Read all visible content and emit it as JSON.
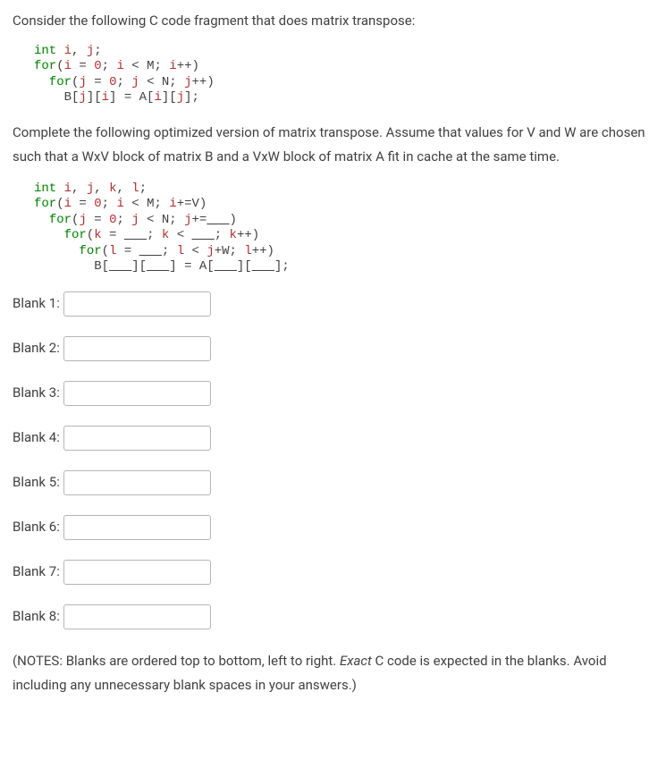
{
  "intro": "Consider the following C code fragment that does matrix transpose:",
  "code1_html": "<span class='kw'>int</span> <span class='var'>i</span>, <span class='var'>j</span>;\n<span class='kw'>for</span>(<span class='var'>i</span> = <span class='num'>0</span>; <span class='var'>i</span> &lt; M; <span class='var'>i</span>++)\n  <span class='kw'>for</span>(<span class='var'>j</span> = <span class='num'>0</span>; <span class='var'>j</span> &lt; N; <span class='var'>j</span>++)\n    B[<span class='var'>j</span>][<span class='var'>i</span>] = A[<span class='var'>i</span>][<span class='var'>j</span>];",
  "completion": "Complete the following optimized version of matrix transpose.  Assume that values for V and W are chosen such that a WxV block of matrix B and a VxW block of matrix A fit in cache at the same time.",
  "code2_html": "<span class='kw'>int</span> <span class='var'>i</span>, <span class='var'>j</span>, <span class='var'>k</span>, <span class='var'>l</span>;\n<span class='kw'>for</span>(<span class='var'>i</span> = <span class='num'>0</span>; <span class='var'>i</span> &lt; M; <span class='var'>i</span>+=V)\n  <span class='kw'>for</span>(<span class='var'>j</span> = <span class='num'>0</span>; <span class='var'>j</span> &lt; N; <span class='var'>j</span>+=<span class='u'>   </span>)\n    <span class='kw'>for</span>(<span class='var'>k</span> = <span class='u'>   </span>; <span class='var'>k</span> &lt; <span class='u'>   </span>; <span class='var'>k</span>++)\n      <span class='kw'>for</span>(<span class='var'>l</span> = <span class='u'>   </span>; <span class='var'>l</span> &lt; <span class='var'>j</span>+W; <span class='var'>l</span>++)\n        B[<span class='u'>   </span>][<span class='u'>   </span>] = A[<span class='u'>   </span>][<span class='u'>   </span>];",
  "blanks": [
    {
      "label": "Blank 1:",
      "value": ""
    },
    {
      "label": "Blank 2:",
      "value": ""
    },
    {
      "label": "Blank 3:",
      "value": ""
    },
    {
      "label": "Blank 4:",
      "value": ""
    },
    {
      "label": "Blank 5:",
      "value": ""
    },
    {
      "label": "Blank 6:",
      "value": ""
    },
    {
      "label": "Blank 7:",
      "value": ""
    },
    {
      "label": "Blank 8:",
      "value": ""
    }
  ],
  "notes_prefix": "(NOTES: Blanks are ordered top to bottom, left to right.  ",
  "notes_em": "Exact",
  "notes_suffix": " C code is expected in the blanks.  Avoid including any unnecessary blank spaces in your answers.)",
  "colors": {
    "text": "#414141",
    "keyword": "#008000",
    "variable": "#b03030",
    "input_border": "#b5b5b5",
    "background": "#ffffff"
  }
}
